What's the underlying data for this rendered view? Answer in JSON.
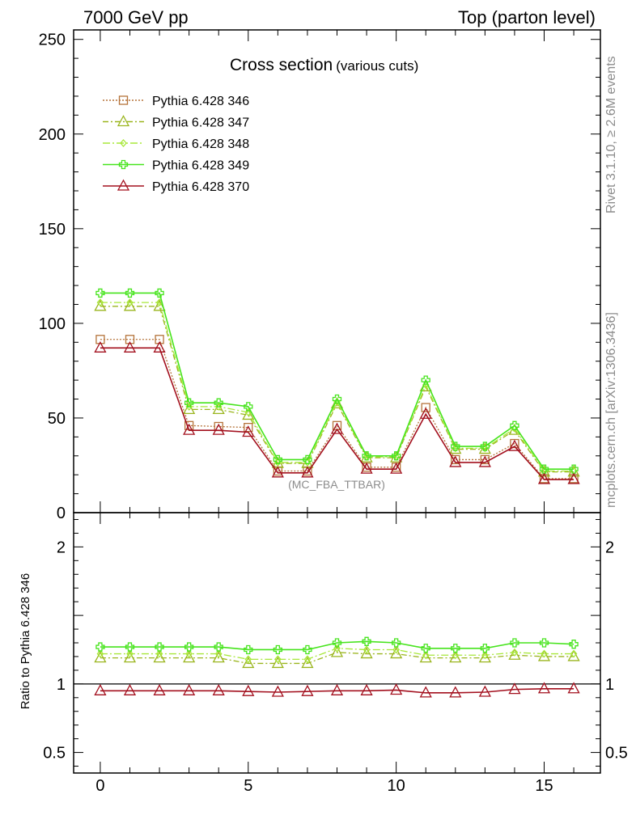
{
  "header": {
    "left": "7000 GeV pp",
    "right": "Top (parton level)"
  },
  "main_title": "Cross section",
  "main_title_small": "(various cuts)",
  "side_label_top": "Rivet 3.1.10, ≥ 2.6M events",
  "side_label_bottom": "mcplots.cern.ch [arXiv:1306.3436]",
  "analysis_tag": "(MC_FBA_TTBAR)",
  "ratio_ylabel": "Ratio to Pythia 6.428 346",
  "colors": {
    "346": "#b5733a",
    "347": "#9ab51e",
    "348": "#a8e83a",
    "349": "#46e41c",
    "370": "#a3101e"
  },
  "chart_data": [
    {
      "type": "line",
      "xlim": [
        -0.9,
        16.9
      ],
      "ylim": [
        0,
        255
      ],
      "y_ticks": [
        0,
        50,
        100,
        150,
        200,
        250
      ],
      "x_ticks": [
        0,
        5,
        10,
        15
      ],
      "x": [
        0,
        1,
        2,
        3,
        4,
        5,
        6,
        7,
        8,
        9,
        10,
        11,
        12,
        13,
        14,
        15,
        16
      ],
      "series": [
        {
          "name": "Pythia 6.428 346",
          "key": "346",
          "marker": "square",
          "dash": "2,2",
          "values": [
            91.5,
            91.5,
            91.5,
            46,
            45.5,
            45,
            22,
            22,
            46,
            24,
            24,
            55.5,
            28,
            28,
            36.5,
            18,
            18
          ]
        },
        {
          "name": "Pythia 6.428 347",
          "key": "347",
          "marker": "triangle",
          "dash": "7,3,2,3",
          "values": [
            109,
            109,
            109,
            54.5,
            54.5,
            51.5,
            26,
            26,
            57.5,
            29,
            29,
            66.5,
            33.5,
            33.5,
            43.5,
            21.5,
            21.5
          ]
        },
        {
          "name": "Pythia 6.428 348",
          "key": "348",
          "marker": "diamond",
          "dash": "9,3,2,3",
          "values": [
            111,
            111,
            111,
            56,
            56,
            53,
            26.5,
            26.5,
            58.5,
            29.5,
            29.5,
            67.5,
            34,
            34,
            44.5,
            22,
            22
          ]
        },
        {
          "name": "Pythia 6.428 349",
          "key": "349",
          "marker": "cross",
          "dash": "",
          "values": [
            116,
            116,
            116,
            58,
            58,
            56,
            28,
            28,
            60,
            30,
            30,
            70,
            35,
            35,
            46,
            23,
            23
          ]
        },
        {
          "name": "Pythia 6.428 370",
          "key": "370",
          "marker": "triangle",
          "dash": "",
          "values": [
            87,
            87,
            87,
            43.5,
            43.5,
            42.5,
            21,
            21,
            44,
            23,
            23,
            52,
            26.5,
            26.5,
            35,
            17.5,
            17.5
          ]
        }
      ]
    },
    {
      "type": "line",
      "xlim": [
        -0.9,
        16.9
      ],
      "ylim": [
        0.35,
        2.25
      ],
      "y_ticks": [
        0.5,
        1,
        2
      ],
      "y_tick_labels": [
        "0.5",
        "1",
        "2"
      ],
      "x_ticks": [
        0,
        5,
        10,
        15
      ],
      "x": [
        0,
        1,
        2,
        3,
        4,
        5,
        6,
        7,
        8,
        9,
        10,
        11,
        12,
        13,
        14,
        15,
        16
      ],
      "series": [
        {
          "name": "Pythia 6.428 346",
          "key": "346",
          "marker": "square",
          "dash": "2,2",
          "values": [
            1,
            1,
            1,
            1,
            1,
            1,
            1,
            1,
            1,
            1,
            1,
            1,
            1,
            1,
            1,
            1,
            1
          ]
        },
        {
          "name": "Pythia 6.428 347",
          "key": "347",
          "marker": "triangle",
          "dash": "7,3,2,3",
          "values": [
            1.19,
            1.19,
            1.19,
            1.19,
            1.19,
            1.15,
            1.15,
            1.15,
            1.23,
            1.22,
            1.22,
            1.19,
            1.19,
            1.19,
            1.21,
            1.2,
            1.2
          ]
        },
        {
          "name": "Pythia 6.428 348",
          "key": "348",
          "marker": "diamond",
          "dash": "9,3,2,3",
          "values": [
            1.22,
            1.22,
            1.22,
            1.22,
            1.22,
            1.18,
            1.18,
            1.18,
            1.26,
            1.25,
            1.25,
            1.21,
            1.21,
            1.21,
            1.23,
            1.22,
            1.22
          ]
        },
        {
          "name": "Pythia 6.428 349",
          "key": "349",
          "marker": "cross",
          "dash": "",
          "values": [
            1.27,
            1.27,
            1.27,
            1.27,
            1.27,
            1.25,
            1.25,
            1.25,
            1.3,
            1.31,
            1.3,
            1.26,
            1.26,
            1.26,
            1.3,
            1.3,
            1.29
          ]
        },
        {
          "name": "Pythia 6.428 370",
          "key": "370",
          "marker": "triangle",
          "dash": "",
          "values": [
            0.95,
            0.95,
            0.95,
            0.95,
            0.95,
            0.945,
            0.94,
            0.945,
            0.95,
            0.95,
            0.955,
            0.935,
            0.935,
            0.94,
            0.96,
            0.965,
            0.965
          ]
        }
      ]
    }
  ]
}
